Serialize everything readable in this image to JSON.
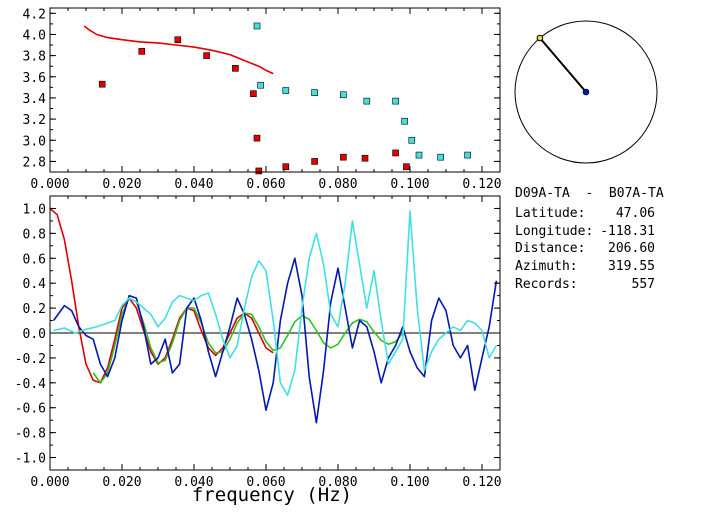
{
  "station_pair": "D09A-TA  -  B07A-TA",
  "info": [
    {
      "label": "Latitude:",
      "value": "47.06"
    },
    {
      "label": "Longitude:",
      "value": "-118.31"
    },
    {
      "label": "Distance:",
      "value": "206.60"
    },
    {
      "label": "Azimuth:",
      "value": "319.55"
    },
    {
      "label": "Records:",
      "value": "557"
    }
  ],
  "colors": {
    "red": "#e00000",
    "cyan": "#40e0e0",
    "blue": "#0018b0",
    "green": "#30c020",
    "black": "#000000"
  },
  "azimuth_deg": 319.55,
  "chart_data": [
    {
      "type": "scatter",
      "xlim": [
        0.0,
        0.125
      ],
      "ylim": [
        2.7,
        4.25
      ],
      "xticks": [
        "0.000",
        "0.020",
        "0.040",
        "0.060",
        "0.080",
        "0.100",
        "0.120"
      ],
      "yticks": [
        "2.8",
        "3.0",
        "3.2",
        "3.4",
        "3.6",
        "3.8",
        "4.0",
        "4.2"
      ],
      "series": [
        {
          "kind": "line",
          "color": "red",
          "x": [
            0.0095,
            0.011,
            0.013,
            0.016,
            0.02,
            0.025,
            0.03,
            0.035,
            0.04,
            0.045,
            0.05,
            0.055,
            0.058,
            0.06,
            0.062
          ],
          "y": [
            4.08,
            4.04,
            4.0,
            3.97,
            3.95,
            3.93,
            3.92,
            3.9,
            3.88,
            3.85,
            3.81,
            3.74,
            3.7,
            3.66,
            3.63
          ]
        },
        {
          "kind": "points",
          "color": "red",
          "x": [
            0.0145,
            0.0255,
            0.0355,
            0.0435,
            0.0515,
            0.0565,
            0.0575,
            0.058,
            0.0655,
            0.0735,
            0.0815,
            0.0875,
            0.096,
            0.099
          ],
          "y": [
            3.53,
            3.84,
            3.95,
            3.8,
            3.68,
            3.44,
            3.02,
            2.71,
            2.75,
            2.8,
            2.84,
            2.83,
            2.88,
            2.75
          ]
        },
        {
          "kind": "points",
          "color": "cyan",
          "x": [
            0.0575,
            0.0585,
            0.0655,
            0.0735,
            0.0815,
            0.088,
            0.096,
            0.0985,
            0.1005,
            0.1025,
            0.1085,
            0.116
          ],
          "y": [
            4.08,
            3.52,
            3.47,
            3.45,
            3.43,
            3.37,
            3.37,
            3.18,
            3.0,
            2.86,
            2.84,
            2.86
          ]
        }
      ]
    },
    {
      "type": "line",
      "xlabel": "frequency (Hz)",
      "xlim": [
        0.0,
        0.125
      ],
      "ylim": [
        -1.1,
        1.1
      ],
      "xticks": [
        "0.000",
        "0.020",
        "0.040",
        "0.060",
        "0.080",
        "0.100",
        "0.120"
      ],
      "yticks": [
        "1.0",
        "0.8",
        "0.6",
        "0.4",
        "0.2",
        "0.0",
        "-0.2",
        "-0.4",
        "-0.6",
        "-0.8",
        "-1.0"
      ],
      "series": [
        {
          "color": "red",
          "x": [
            0.0,
            0.002,
            0.004,
            0.006,
            0.008,
            0.01,
            0.012,
            0.014,
            0.016,
            0.018,
            0.02,
            0.022,
            0.024,
            0.026,
            0.028,
            0.03,
            0.032,
            0.034,
            0.036,
            0.038,
            0.04,
            0.042,
            0.044,
            0.046,
            0.048,
            0.05,
            0.052,
            0.054,
            0.056,
            0.058,
            0.06,
            0.062
          ],
          "y": [
            1.0,
            0.95,
            0.75,
            0.42,
            0.05,
            -0.25,
            -0.38,
            -0.4,
            -0.28,
            -0.05,
            0.2,
            0.28,
            0.2,
            0.02,
            -0.15,
            -0.25,
            -0.2,
            -0.05,
            0.12,
            0.2,
            0.18,
            0.02,
            -0.12,
            -0.18,
            -0.12,
            0.0,
            0.12,
            0.16,
            0.12,
            0.0,
            -0.12,
            -0.16
          ]
        },
        {
          "color": "green",
          "x": [
            0.012,
            0.014,
            0.016,
            0.018,
            0.02,
            0.022,
            0.024,
            0.026,
            0.028,
            0.03,
            0.032,
            0.034,
            0.036,
            0.038,
            0.04,
            0.042,
            0.044,
            0.046,
            0.048,
            0.05,
            0.052,
            0.054,
            0.056,
            0.058,
            0.06,
            0.062,
            0.064,
            0.066,
            0.068,
            0.07,
            0.072,
            0.074,
            0.076,
            0.078,
            0.08,
            0.082,
            0.084,
            0.086,
            0.088,
            0.09,
            0.092,
            0.094,
            0.096,
            0.098
          ],
          "y": [
            -0.32,
            -0.4,
            -0.32,
            -0.1,
            0.15,
            0.28,
            0.25,
            0.08,
            -0.12,
            -0.24,
            -0.22,
            -0.08,
            0.1,
            0.2,
            0.2,
            0.08,
            -0.08,
            -0.16,
            -0.15,
            -0.05,
            0.08,
            0.16,
            0.15,
            0.05,
            -0.07,
            -0.14,
            -0.12,
            -0.02,
            0.09,
            0.14,
            0.11,
            0.02,
            -0.08,
            -0.12,
            -0.09,
            0.0,
            0.08,
            0.11,
            0.09,
            0.01,
            -0.06,
            -0.09,
            -0.07,
            0.0
          ]
        },
        {
          "color": "blue",
          "x": [
            0.001,
            0.003,
            0.004,
            0.006,
            0.008,
            0.01,
            0.012,
            0.014,
            0.016,
            0.018,
            0.02,
            0.022,
            0.024,
            0.026,
            0.028,
            0.03,
            0.032,
            0.034,
            0.036,
            0.038,
            0.04,
            0.042,
            0.044,
            0.046,
            0.048,
            0.05,
            0.052,
            0.054,
            0.056,
            0.058,
            0.06,
            0.062,
            0.064,
            0.066,
            0.068,
            0.07,
            0.072,
            0.074,
            0.076,
            0.078,
            0.08,
            0.082,
            0.084,
            0.086,
            0.088,
            0.09,
            0.092,
            0.094,
            0.096,
            0.098,
            0.1,
            0.102,
            0.104,
            0.106,
            0.108,
            0.11,
            0.112,
            0.114,
            0.116,
            0.118,
            0.12,
            0.122,
            0.124
          ],
          "y": [
            0.1,
            0.18,
            0.22,
            0.18,
            0.05,
            -0.02,
            -0.05,
            -0.25,
            -0.35,
            -0.2,
            0.1,
            0.3,
            0.28,
            0.05,
            -0.25,
            -0.2,
            -0.05,
            -0.32,
            -0.25,
            0.2,
            0.28,
            0.1,
            -0.15,
            -0.35,
            -0.15,
            0.05,
            0.28,
            0.15,
            -0.05,
            -0.3,
            -0.62,
            -0.4,
            0.1,
            0.4,
            0.6,
            0.3,
            -0.35,
            -0.72,
            -0.3,
            0.25,
            0.52,
            0.2,
            -0.12,
            0.1,
            0.05,
            -0.15,
            -0.4,
            -0.2,
            -0.1,
            0.05,
            -0.15,
            -0.28,
            -0.35,
            0.1,
            0.28,
            0.18,
            -0.1,
            -0.2,
            -0.1,
            -0.46,
            -0.2,
            0.05,
            0.42
          ]
        },
        {
          "color": "cyan",
          "x": [
            0.001,
            0.004,
            0.007,
            0.01,
            0.013,
            0.016,
            0.018,
            0.02,
            0.022,
            0.024,
            0.026,
            0.028,
            0.03,
            0.032,
            0.034,
            0.036,
            0.038,
            0.04,
            0.042,
            0.044,
            0.046,
            0.048,
            0.05,
            0.052,
            0.054,
            0.056,
            0.058,
            0.06,
            0.062,
            0.064,
            0.066,
            0.068,
            0.07,
            0.072,
            0.074,
            0.076,
            0.078,
            0.08,
            0.082,
            0.084,
            0.086,
            0.088,
            0.09,
            0.092,
            0.094,
            0.096,
            0.098,
            0.1,
            0.102,
            0.104,
            0.106,
            0.108,
            0.11,
            0.112,
            0.114,
            0.116,
            0.118,
            0.12,
            0.122,
            0.124
          ],
          "y": [
            0.02,
            0.04,
            0.0,
            0.03,
            0.05,
            0.08,
            0.1,
            0.22,
            0.28,
            0.25,
            0.2,
            0.15,
            0.05,
            0.12,
            0.25,
            0.3,
            0.28,
            0.26,
            0.3,
            0.32,
            0.15,
            -0.05,
            -0.2,
            -0.1,
            0.2,
            0.45,
            0.58,
            0.5,
            0.1,
            -0.4,
            -0.5,
            -0.3,
            0.2,
            0.6,
            0.8,
            0.55,
            0.15,
            0.05,
            0.4,
            0.9,
            0.55,
            0.2,
            0.5,
            0.1,
            -0.25,
            -0.15,
            -0.05,
            0.98,
            0.2,
            -0.3,
            -0.15,
            -0.05,
            0.0,
            0.05,
            0.02,
            0.1,
            0.08,
            0.02,
            -0.2,
            -0.1
          ]
        }
      ]
    }
  ]
}
